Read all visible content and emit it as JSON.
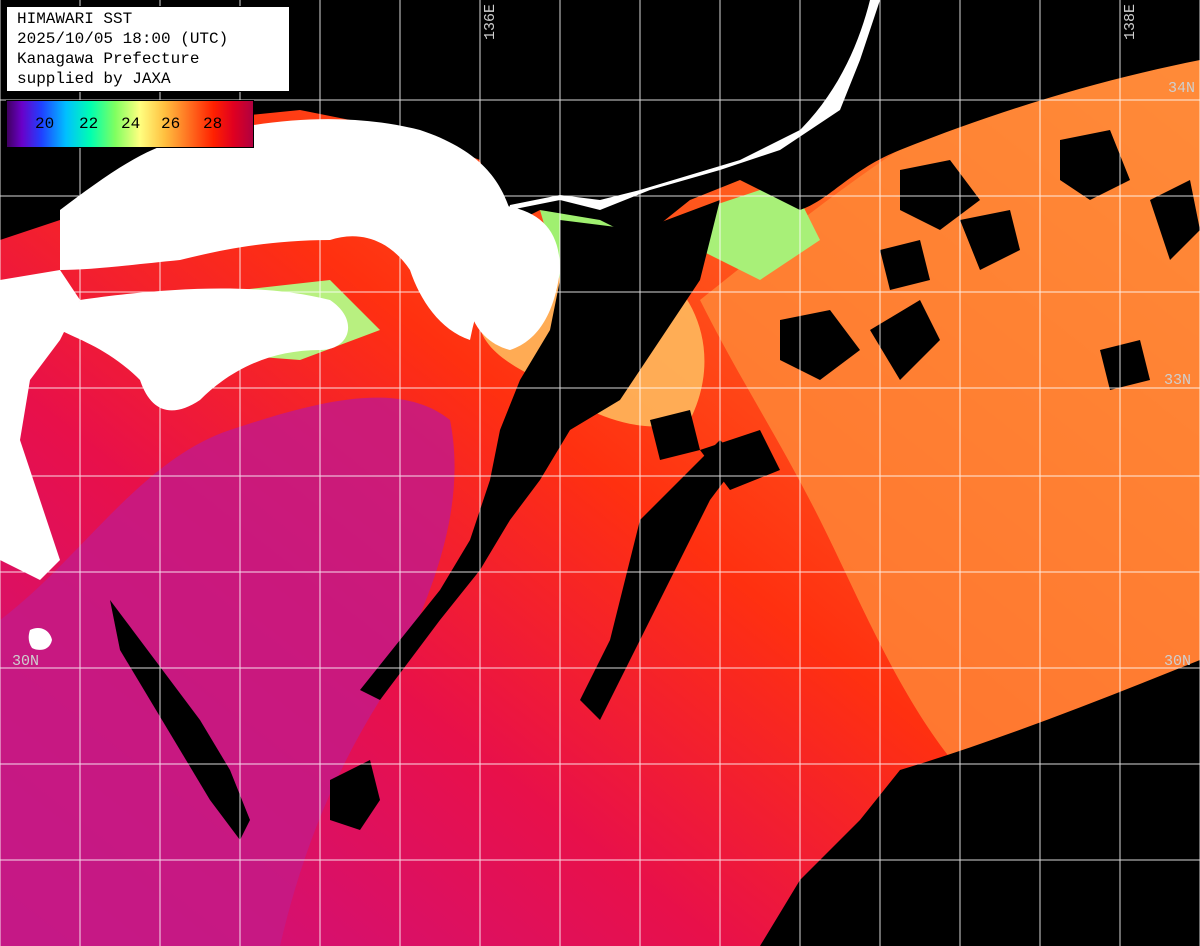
{
  "header": {
    "line1": "HIMAWARI SST",
    "line2": "2025/10/05 18:00 (UTC)",
    "line3": "Kanagawa Prefecture",
    "line4": "supplied by JAXA"
  },
  "color_scale": {
    "ticks": [
      "20",
      "22",
      "24",
      "26",
      "28"
    ],
    "colors": [
      "#400060",
      "#2040ff",
      "#00ffb0",
      "#ffff80",
      "#ff7020",
      "#ff2000",
      "#b00040"
    ]
  },
  "grid_labels": {
    "lon_136": "136E",
    "lon_138": "138E",
    "lat_33_right": "33N",
    "lat_34_right": "34N",
    "lat_30_left": "30N",
    "lat_30_right": "30N"
  },
  "colors": {
    "land": "#ffffff",
    "cloud": "#000000",
    "grid": "#ffffff",
    "sst_warm": "#ff2a00",
    "sst_hot": "#c81070",
    "sst_mild": "#ff8c30",
    "sst_cool": "#b0ff70"
  }
}
